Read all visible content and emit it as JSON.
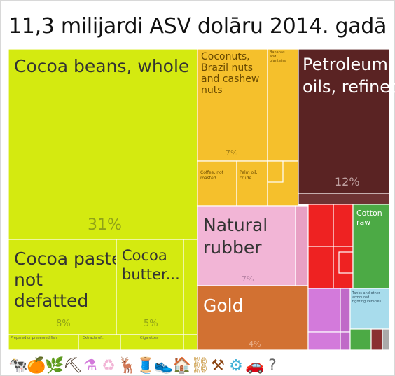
{
  "chart_data": {
    "type": "treemap",
    "title": "11,3 milijardi ASV dolāru 2014. gadā",
    "tiles": [
      {
        "label": "Cocoa beans, whole",
        "value": "31%",
        "color": "#d4ea10"
      },
      {
        "label": "Cocoa paste not defatted",
        "value": "8%",
        "color": "#d4ea10"
      },
      {
        "label": "Cocoa butter...",
        "value": "5%",
        "color": "#d4ea10"
      },
      {
        "label": "Prepared or preserved fish",
        "value": "",
        "color": "#d4ea10"
      },
      {
        "label": "Extracts of...",
        "value": "",
        "color": "#d4ea10"
      },
      {
        "label": "Cigarettes",
        "value": "",
        "color": "#d4ea10"
      },
      {
        "label": "Coconuts, Brazil nuts and cashew nuts",
        "value": "7%",
        "color": "#f5c02c"
      },
      {
        "label": "Bananas and plantains",
        "value": "",
        "color": "#f5c02c"
      },
      {
        "label": "Coffee, not roasted",
        "value": "",
        "color": "#f5c02c"
      },
      {
        "label": "Palm oil, crude",
        "value": "",
        "color": "#f5c02c"
      },
      {
        "label": "Petroleum oils, refined",
        "value": "12%",
        "color": "#5a2323"
      },
      {
        "label": "Natural rubber",
        "value": "7%",
        "color": "#f2b5d6"
      },
      {
        "label": "Gold",
        "value": "4%",
        "color": "#d27132"
      },
      {
        "label": "Cotton raw",
        "value": "",
        "color": "#4caa45"
      },
      {
        "label": "Tanks and other armoured fighting vehicles",
        "value": "",
        "color": "#a8dcec"
      }
    ]
  },
  "category_bar": {
    "icons": [
      "animal-icon",
      "fruit-icon",
      "plant-icon",
      "mineral-icon",
      "chemical-icon",
      "plastic-icon",
      "animal-hide-icon",
      "textile-icon",
      "footwear-icon",
      "stone-icon",
      "metal-icon",
      "machinery-icon",
      "transport-icon",
      "unknown-icon",
      "misc-icon"
    ],
    "glyphs": [
      "🐄",
      "🍊",
      "🌿",
      "⛏",
      "⚗",
      "♻",
      "🦌",
      "🧵",
      "👟",
      "🏠",
      "⛓",
      "⚒",
      "⚙",
      "🚗",
      "?"
    ],
    "colors": [
      "#f2c86b",
      "#f39b1f",
      "#9acd32",
      "#4b3a2a",
      "#d37adb",
      "#f2b5d6",
      "#b8dc6a",
      "#3ca04a",
      "#2f8b57",
      "#dd3333",
      "#c8963c",
      "#8b4513",
      "#3fb0d6",
      "#7aa7c7",
      "#666666"
    ]
  }
}
